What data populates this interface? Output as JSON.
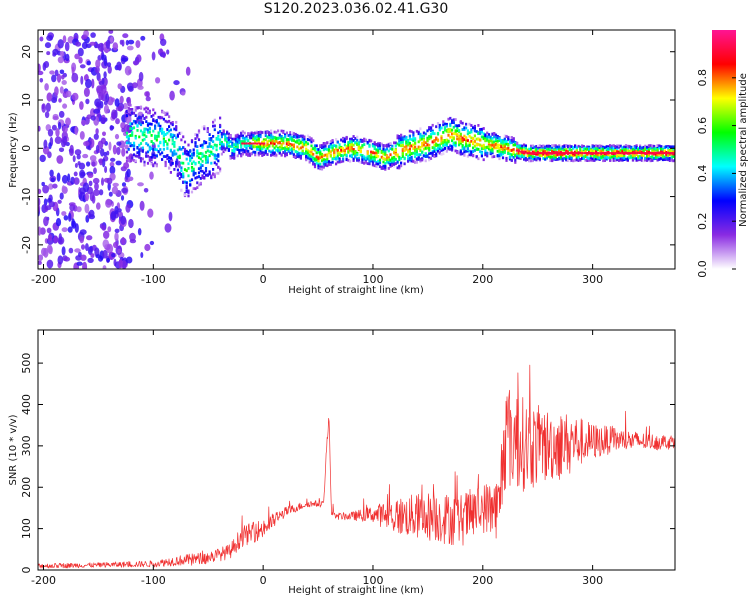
{
  "title": "S120.2023.036.02.41.G30",
  "colors": {
    "snr_line": "#f03030",
    "frame": "#000000",
    "background": "#ffffff"
  },
  "chart_data": [
    {
      "type": "heatmap",
      "xlabel": "Height of straight line (km)",
      "ylabel": "Frequency (Hz)",
      "xlim": [
        -205,
        375
      ],
      "ylim": [
        -25,
        24.5
      ],
      "xticks": [
        -200,
        -100,
        0,
        100,
        200,
        300
      ],
      "yticks": [
        -20,
        -10,
        0,
        10,
        20
      ],
      "colorbar": {
        "label": "Normalized spectral amplitude",
        "range": [
          0,
          1
        ],
        "ticks": [
          "0.0",
          "0.2",
          "0.4",
          "0.6",
          "0.8"
        ],
        "colormap": [
          "#ffffff",
          "#8a2be2",
          "#0000ff",
          "#00ffff",
          "#00ff00",
          "#ffff00",
          "#ff0000",
          "#ff1493"
        ]
      },
      "ridge": {
        "x": [
          -120,
          -100,
          -90,
          -80,
          -75,
          -70,
          -60,
          -50,
          -40,
          -35,
          -30,
          -20,
          0,
          20,
          40,
          50,
          60,
          80,
          100,
          110,
          130,
          150,
          160,
          170,
          180,
          200,
          220,
          240,
          260,
          300,
          340,
          375
        ],
        "frequency": [
          3,
          2,
          2,
          0,
          -3,
          -5,
          -2,
          -1,
          1,
          2,
          0,
          1,
          1,
          1,
          0,
          -2,
          -1,
          0,
          -1,
          -2,
          0,
          1,
          2,
          3,
          2,
          1,
          0,
          -1,
          -1,
          -1,
          -1,
          -1
        ]
      }
    },
    {
      "type": "line",
      "xlabel": "Height of straight line (km)",
      "ylabel": "SNR (10 * v/v)",
      "xlim": [
        -205,
        375
      ],
      "ylim": [
        0,
        580
      ],
      "xticks": [
        -200,
        -100,
        0,
        100,
        200,
        300
      ],
      "yticks": [
        0,
        100,
        200,
        300,
        400,
        500
      ],
      "envelope": {
        "x": [
          -205,
          -150,
          -100,
          -80,
          -50,
          -30,
          -20,
          0,
          20,
          40,
          55,
          58,
          60,
          62,
          65,
          80,
          100,
          120,
          150,
          180,
          200,
          215,
          220,
          240,
          260,
          280,
          300,
          320,
          350,
          375
        ],
        "mean": [
          10,
          12,
          15,
          22,
          30,
          45,
          80,
          100,
          140,
          160,
          160,
          300,
          370,
          150,
          130,
          130,
          135,
          130,
          130,
          120,
          150,
          150,
          330,
          300,
          300,
          310,
          310,
          315,
          310,
          310
        ],
        "spread": [
          6,
          6,
          8,
          12,
          15,
          18,
          25,
          25,
          12,
          8,
          8,
          20,
          10,
          15,
          8,
          10,
          20,
          45,
          60,
          65,
          60,
          80,
          140,
          110,
          90,
          70,
          45,
          30,
          20,
          18
        ]
      }
    }
  ]
}
